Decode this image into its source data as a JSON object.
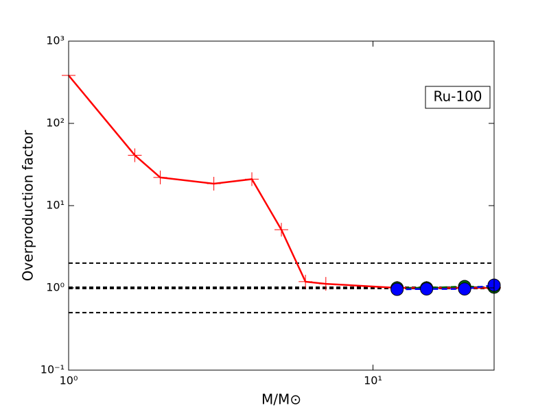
{
  "chart_data": {
    "type": "line",
    "annotation": "Ru-100",
    "xlabel": "M/M⊙",
    "ylabel": "Overproduction factor",
    "xscale": "log",
    "yscale": "log",
    "xlim": [
      1,
      25
    ],
    "ylim": [
      0.1,
      1000
    ],
    "xticks": [
      {
        "value": 1,
        "label": "10⁰"
      },
      {
        "value": 10,
        "label": "10¹"
      }
    ],
    "yticks": [
      {
        "value": 0.1,
        "label": "10⁻¹"
      },
      {
        "value": 1,
        "label": "10⁰"
      },
      {
        "value": 10,
        "label": "10¹"
      },
      {
        "value": 100,
        "label": "10²"
      },
      {
        "value": 1000,
        "label": "10³"
      }
    ],
    "hlines": [
      {
        "value": 2,
        "linewidth": 2
      },
      {
        "value": 1,
        "linewidth": 4
      },
      {
        "value": 0.5,
        "linewidth": 2
      }
    ],
    "series": [
      {
        "x": [
          1,
          1.65,
          2,
          3,
          4,
          5,
          6,
          7,
          12,
          15,
          20,
          25
        ],
        "values": [
          383,
          41,
          22,
          18.5,
          21,
          5.1,
          1.19,
          1.12,
          1.0,
          1.0,
          1.0,
          1.0
        ],
        "color": "#ff0000",
        "marker": "plus",
        "linestyle": "solid"
      },
      {
        "x": [
          12,
          15,
          20,
          25
        ],
        "values": [
          1.0,
          1.0,
          1.04,
          1.02
        ],
        "color": "#006400",
        "marker": "circle",
        "linestyle": "dashed"
      },
      {
        "x": [
          12,
          15,
          20,
          25
        ],
        "values": [
          0.96,
          0.97,
          0.97,
          1.08
        ],
        "color": "#0000ff",
        "marker": "circle",
        "linestyle": "dashed"
      }
    ]
  }
}
